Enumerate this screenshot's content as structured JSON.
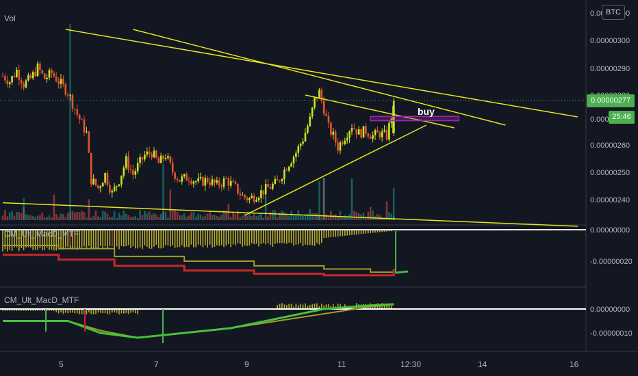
{
  "header": {
    "volume_label": "Vol",
    "currency_badge": "BTC"
  },
  "annotation": {
    "buy_label": "buy"
  },
  "price_axis": {
    "ticks": [
      "0.00000300",
      "0.00000290",
      "0.00000280",
      "0.00000270",
      "0.00000260",
      "0.00000250",
      "0.00000240"
    ],
    "current_price": "0.00000277",
    "countdown": "25:46"
  },
  "indicators": [
    {
      "name": "CM_Ult_MacD_MTF",
      "ticks": [
        "0.00000000",
        "-0.00000020"
      ]
    },
    {
      "name": "CM_Ult_MacD_MTF",
      "ticks": [
        "0.00000000",
        "-0.00000010"
      ]
    }
  ],
  "time_axis": {
    "ticks": [
      "5",
      "7",
      "9",
      "11",
      "12:30",
      "14",
      "16"
    ]
  },
  "chart_data": {
    "type": "candlestick",
    "symbol_quote": "BTC",
    "price_range": [
      2.315e-06,
      3.045e-06
    ],
    "x_range": [
      4.1,
      16.45
    ],
    "closes": [
      [
        4.1,
        2.88
      ],
      [
        4.25,
        2.86
      ],
      [
        4.4,
        2.9
      ],
      [
        4.55,
        2.85
      ],
      [
        4.7,
        2.87
      ],
      [
        4.85,
        2.91
      ],
      [
        5.0,
        2.87
      ],
      [
        5.15,
        2.89
      ],
      [
        5.3,
        2.86
      ],
      [
        5.5,
        2.82
      ],
      [
        5.7,
        2.74
      ],
      [
        5.9,
        2.67
      ],
      [
        6.0,
        2.5
      ],
      [
        6.15,
        2.47
      ],
      [
        6.3,
        2.52
      ],
      [
        6.45,
        2.45
      ],
      [
        6.6,
        2.5
      ],
      [
        6.75,
        2.57
      ],
      [
        6.9,
        2.52
      ],
      [
        7.0,
        2.55
      ],
      [
        7.15,
        2.59
      ],
      [
        7.3,
        2.6
      ],
      [
        7.45,
        2.56
      ],
      [
        7.6,
        2.59
      ],
      [
        7.75,
        2.53
      ],
      [
        7.9,
        2.5
      ],
      [
        8.1,
        2.51
      ],
      [
        8.3,
        2.49
      ],
      [
        8.5,
        2.5
      ],
      [
        8.7,
        2.48
      ],
      [
        8.9,
        2.5
      ],
      [
        9.1,
        2.47
      ],
      [
        9.25,
        2.44
      ],
      [
        9.4,
        2.43
      ],
      [
        9.6,
        2.45
      ],
      [
        9.8,
        2.47
      ],
      [
        10.0,
        2.49
      ],
      [
        10.2,
        2.55
      ],
      [
        10.4,
        2.6
      ],
      [
        10.55,
        2.65
      ],
      [
        10.7,
        2.72
      ],
      [
        10.8,
        2.79
      ],
      [
        10.9,
        2.82
      ],
      [
        11.0,
        2.76
      ],
      [
        11.1,
        2.69
      ],
      [
        11.2,
        2.66
      ],
      [
        11.3,
        2.62
      ],
      [
        11.45,
        2.66
      ],
      [
        11.6,
        2.7
      ],
      [
        11.75,
        2.67
      ],
      [
        11.9,
        2.68
      ],
      [
        12.05,
        2.66
      ],
      [
        12.2,
        2.67
      ],
      [
        12.35,
        2.66
      ],
      [
        12.5,
        2.77
      ]
    ],
    "trendlines": [
      {
        "from": [
          5.45,
          3.05
        ],
        "to": [
          16.45,
          2.73
        ]
      },
      {
        "from": [
          6.9,
          3.05
        ],
        "to": [
          14.9,
          2.7
        ]
      },
      {
        "from": [
          10.6,
          2.81
        ],
        "to": [
          13.8,
          2.69
        ]
      },
      {
        "from": [
          9.3,
          2.37
        ],
        "to": [
          13.2,
          2.7
        ]
      },
      {
        "from": [
          4.1,
          2.416
        ],
        "to": [
          16.45,
          2.33
        ]
      }
    ],
    "buy_zone": {
      "x": [
        12.0,
        13.9
      ],
      "y": [
        2.732,
        2.716
      ]
    },
    "indicator1": {
      "type": "macd",
      "y_range": [
        -3.5e-07,
        2e-08
      ],
      "signal_x": [
        4.1,
        5.3,
        6.5,
        8.0,
        9.5,
        11.0,
        12.0,
        12.5
      ],
      "signal": [
        -1e-07,
        -1.2e-07,
        -1.7e-07,
        -2e-07,
        -2.3e-07,
        -2.5e-07,
        -2.7e-07,
        -2.6e-07
      ],
      "macd": [
        -1.6e-07,
        -1.9e-07,
        -2.3e-07,
        -2.6e-07,
        -2.8e-07,
        -2.9e-07,
        -2.9e-07,
        -2.5e-07
      ]
    },
    "indicator2": {
      "type": "macd",
      "y_range": [
        -1.6e-07,
        4e-08
      ],
      "signal_x": [
        4.1,
        5.0,
        5.5,
        6.2,
        7.0,
        8.0,
        9.0,
        10.0,
        11.0,
        12.0,
        12.5
      ],
      "signal": [
        -5e-08,
        -5e-08,
        -5e-08,
        -9e-08,
        -1.2e-07,
        -1e-07,
        -8e-08,
        -5e-08,
        -2e-08,
        1e-08,
        1.8e-08
      ],
      "macd": [
        -5e-08,
        -5e-08,
        -5e-08,
        -1e-07,
        -1.2e-07,
        -1e-07,
        -8e-08,
        -4e-08,
        0.0,
        1.5e-08,
        2e-08
      ]
    }
  }
}
